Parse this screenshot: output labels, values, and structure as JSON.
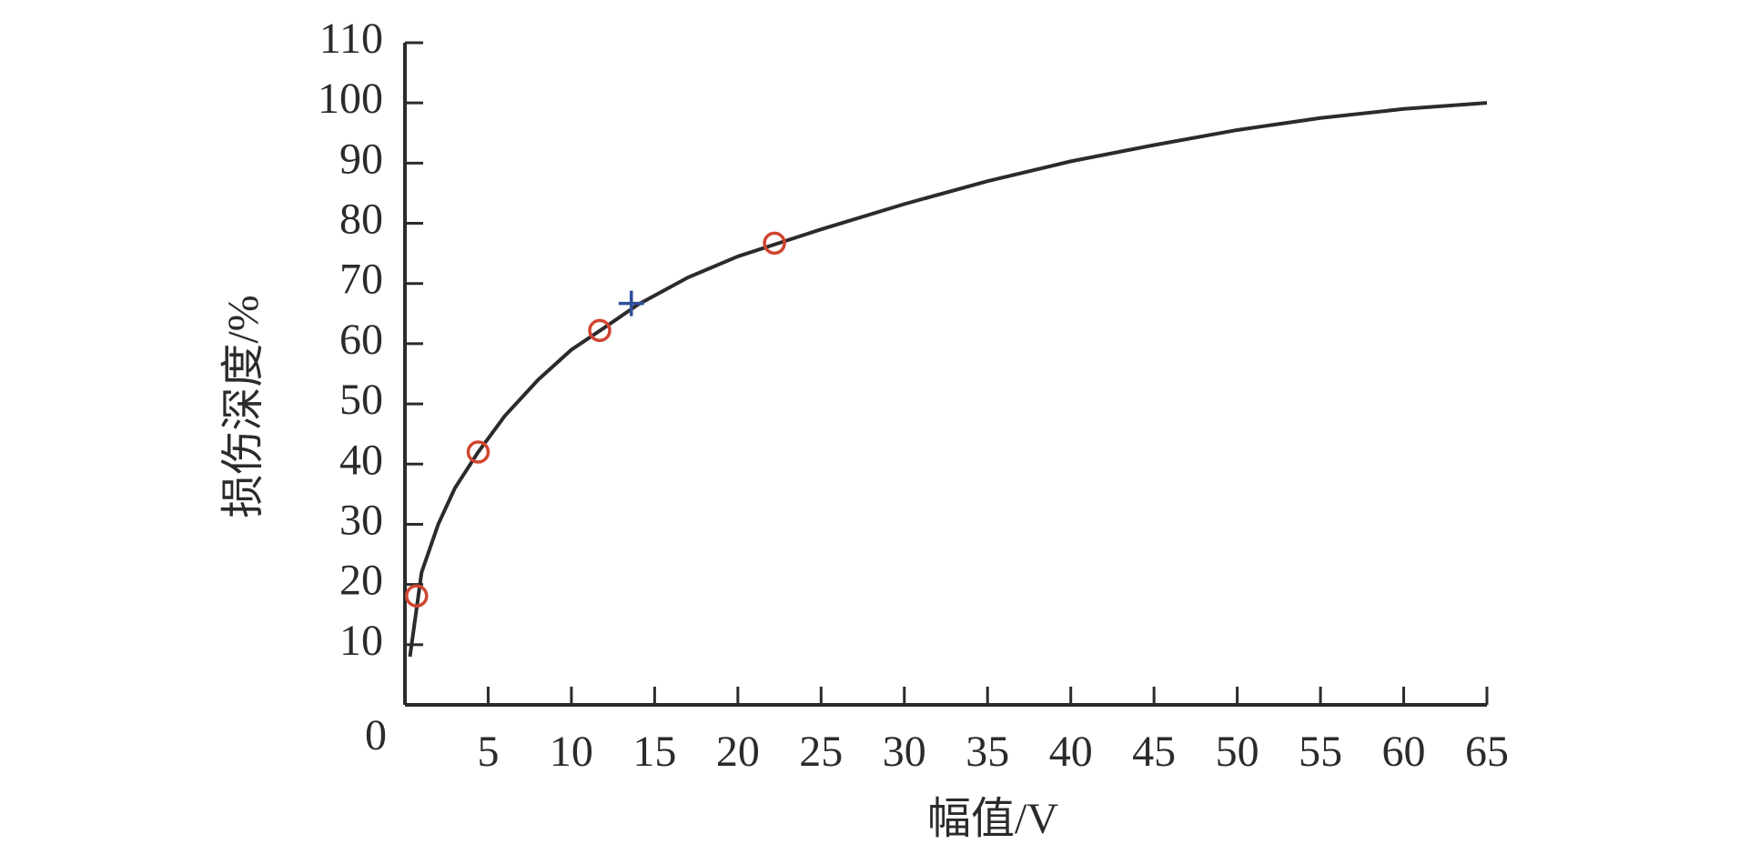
{
  "chart_data": {
    "type": "line",
    "xlabel": "幅值/V",
    "ylabel": "损伤深度/%",
    "xlim": [
      0,
      65
    ],
    "ylim": [
      0,
      110
    ],
    "xticks": [
      0,
      5,
      10,
      15,
      20,
      25,
      30,
      35,
      40,
      45,
      50,
      55,
      60,
      65
    ],
    "yticks": [
      10,
      20,
      30,
      40,
      50,
      60,
      70,
      80,
      90,
      100,
      110
    ],
    "series": [
      {
        "type": "line",
        "color": "#2b2b2b",
        "x": [
          0.3,
          1,
          2,
          3,
          4.4,
          6,
          8,
          10,
          12,
          14,
          17,
          20,
          25,
          30,
          35,
          40,
          45,
          50,
          55,
          60,
          65
        ],
        "values": [
          8,
          22,
          30,
          36,
          42,
          48,
          54,
          59,
          62.7,
          66.5,
          71,
          74.5,
          79,
          83.2,
          87,
          90.3,
          93,
          95.5,
          97.5,
          99,
          100
        ]
      },
      {
        "type": "circle",
        "color": "#d0452f",
        "x": [
          0.7,
          4.4,
          11.7,
          22.2
        ],
        "values": [
          18.1,
          42,
          62.2,
          76.7
        ]
      },
      {
        "type": "plus",
        "color": "#2f4f9a",
        "x": [
          13.6
        ],
        "values": [
          66.7
        ]
      }
    ]
  }
}
